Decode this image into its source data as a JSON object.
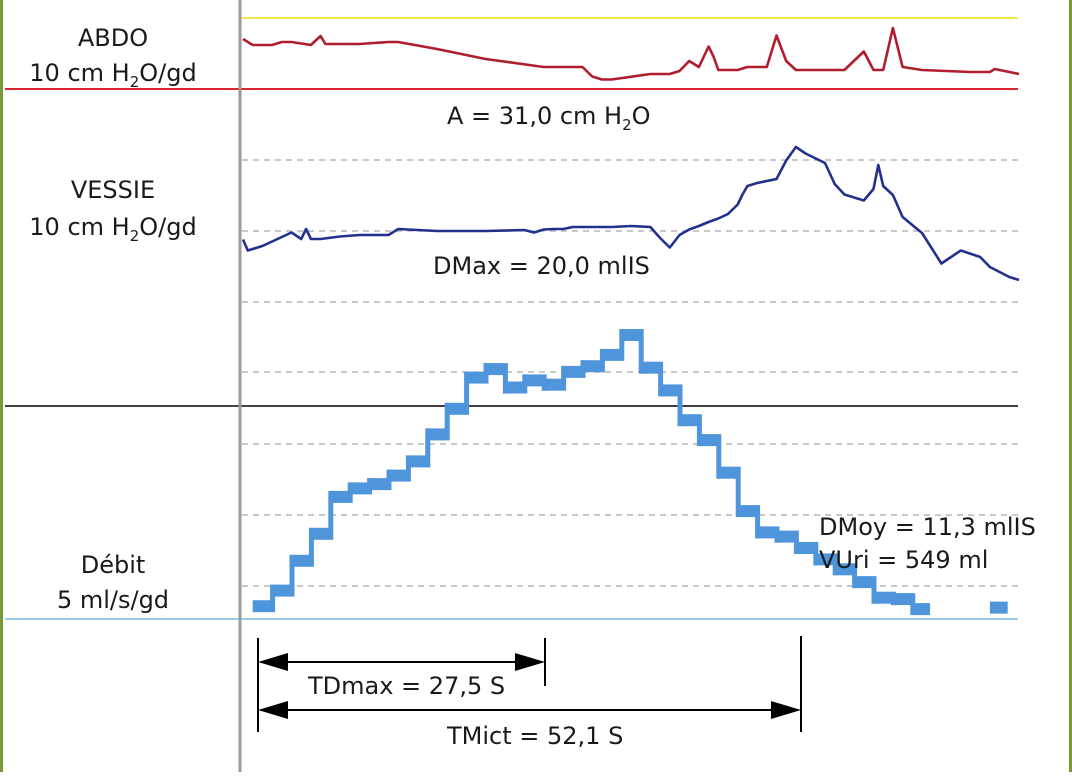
{
  "panels": {
    "abdo": {
      "name": "ABDO",
      "scale_prefix": "10 cm H",
      "scale_sub": "2",
      "scale_suffix": "O/gd"
    },
    "vessie": {
      "name": "VESSIE",
      "scale_prefix": "10 cm H",
      "scale_sub": "2",
      "scale_suffix": "O/gd"
    },
    "debit": {
      "name": "Débit",
      "scale": "5 ml/s/gd"
    }
  },
  "annotations": {
    "a_prefix": "A = 31,0 cm H",
    "a_sub": "2",
    "a_suffix": "O",
    "dmax": "DMax = 20,0 mlIS",
    "dmoy": "DMoy = 11,3 mlIS",
    "vuri": "VUri = 549 ml",
    "tdmax": "TDmax = 27,5 S",
    "tmict": "TMict = 52,1 S"
  },
  "colors": {
    "frame_border": "#7a9a3a",
    "abdo_line": "#b01e2e",
    "vessie_line": "#23318c",
    "debit_fill": "#4f95dc",
    "yellow_line": "#f2e64a",
    "red_baseline": "#d9232e",
    "blue_baseline": "#9cc8ea",
    "axis_gray": "#9a9a9a",
    "grid_gray": "#a8a8a8"
  },
  "chart_data": {
    "type": "line",
    "x_unit": "s",
    "series": [
      {
        "name": "ABDO",
        "x": [
          0,
          1,
          3,
          4,
          5,
          7,
          8,
          8.5,
          9,
          12,
          15,
          16,
          20,
          25,
          31,
          35,
          36,
          37,
          38,
          42,
          44,
          45,
          46,
          47,
          48,
          48.5,
          49,
          51,
          52,
          54,
          55,
          56,
          57,
          58,
          62,
          64,
          65,
          66,
          67,
          68,
          70,
          75,
          77,
          77.5,
          78,
          80
        ],
        "values": [
          10.0,
          8.8,
          8.8,
          9.4,
          9.4,
          8.8,
          10.6,
          9.0,
          9.0,
          9.0,
          9.4,
          9.4,
          8.0,
          6.0,
          4.4,
          4.4,
          2.5,
          1.9,
          1.9,
          3.0,
          3.0,
          3.6,
          5.6,
          4.4,
          8.5,
          6.5,
          3.8,
          3.8,
          4.4,
          4.4,
          10.7,
          5.6,
          3.8,
          3.8,
          3.8,
          7.5,
          3.8,
          3.8,
          12.2,
          4.4,
          3.8,
          3.4,
          3.4,
          4.0,
          3.8,
          3.0
        ]
      },
      {
        "name": "VESSIE",
        "x": [
          0,
          0.5,
          2,
          4,
          5,
          6,
          6.5,
          7,
          8,
          10,
          12,
          15,
          16,
          20,
          25,
          29,
          30,
          31,
          32,
          33,
          34,
          36,
          38,
          40,
          42,
          43,
          44,
          45,
          46,
          47,
          48,
          49,
          50,
          51,
          51.5,
          52,
          53,
          55,
          56,
          57,
          58,
          60,
          61,
          62,
          64,
          65,
          65.5,
          66,
          67,
          68,
          70,
          72,
          74,
          76,
          77,
          78,
          79,
          80
        ],
        "values": [
          12.5,
          10.3,
          11.2,
          13.0,
          13.9,
          12.6,
          14.6,
          12.6,
          12.6,
          13.1,
          13.4,
          13.4,
          14.6,
          14.2,
          14.2,
          14.4,
          13.9,
          14.5,
          14.6,
          14.6,
          15.0,
          15.0,
          15.0,
          15.2,
          15.0,
          12.8,
          10.9,
          13.4,
          14.5,
          15.2,
          16.0,
          16.7,
          17.6,
          19.5,
          21.5,
          23.2,
          23.8,
          24.6,
          28.3,
          31.0,
          29.7,
          27.8,
          23.6,
          21.5,
          20.3,
          22.6,
          27.4,
          23.2,
          21.4,
          17.0,
          13.8,
          7.7,
          10.3,
          9.0,
          7.0,
          6.0,
          5.0,
          4.4
        ]
      },
      {
        "name": "Débit",
        "x": [
          2,
          4,
          6,
          8,
          10,
          12,
          14,
          16,
          18,
          20,
          22,
          24,
          26,
          28,
          30,
          32,
          34,
          36,
          38,
          40,
          42,
          44,
          46,
          48,
          50,
          52,
          54,
          56,
          58,
          60,
          62,
          64,
          66,
          68,
          70,
          72,
          74,
          76,
          78
        ],
        "values": [
          0.9,
          2.0,
          4.1,
          6.0,
          8.6,
          9.2,
          9.5,
          10.1,
          11.1,
          13.0,
          14.8,
          17.0,
          17.6,
          16.3,
          16.8,
          16.5,
          17.4,
          17.8,
          18.6,
          20.0,
          17.7,
          16.1,
          14.0,
          12.6,
          10.3,
          7.6,
          6.1,
          5.8,
          5.0,
          4.2,
          3.5,
          2.6,
          1.5,
          1.4,
          0.7,
          0,
          0,
          0,
          0.8
        ]
      }
    ]
  }
}
